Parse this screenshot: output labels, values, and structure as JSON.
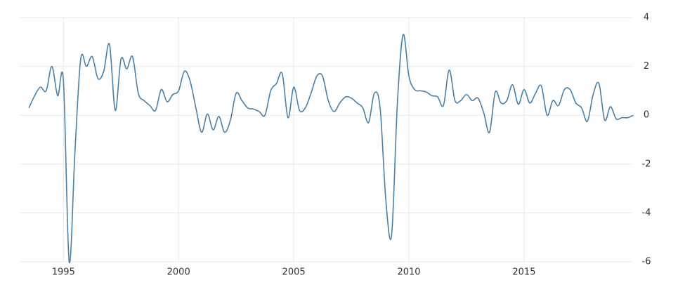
{
  "chart_data": {
    "type": "line",
    "x": [
      1993.5,
      1993.75,
      1994,
      1994.25,
      1994.5,
      1994.75,
      1995,
      1995.25,
      1995.5,
      1995.75,
      1996,
      1996.25,
      1996.5,
      1996.75,
      1997,
      1997.25,
      1997.5,
      1997.75,
      1998,
      1998.25,
      1998.5,
      1998.75,
      1999,
      1999.25,
      1999.5,
      1999.75,
      2000,
      2000.25,
      2000.5,
      2000.75,
      2001,
      2001.25,
      2001.5,
      2001.75,
      2002,
      2002.25,
      2002.5,
      2002.75,
      2003,
      2003.25,
      2003.5,
      2003.75,
      2004,
      2004.25,
      2004.5,
      2004.75,
      2005,
      2005.25,
      2005.5,
      2005.75,
      2006,
      2006.25,
      2006.5,
      2006.75,
      2007,
      2007.25,
      2007.5,
      2007.75,
      2008,
      2008.25,
      2008.5,
      2008.75,
      2009,
      2009.25,
      2009.5,
      2009.75,
      2010,
      2010.25,
      2010.5,
      2010.75,
      2011,
      2011.25,
      2011.5,
      2011.75,
      2012,
      2012.25,
      2012.5,
      2012.75,
      2013,
      2013.25,
      2013.5,
      2013.75,
      2014,
      2014.25,
      2014.5,
      2014.75,
      2015,
      2015.25,
      2015.5,
      2015.75,
      2016,
      2016.25,
      2016.5,
      2016.75,
      2017,
      2017.25,
      2017.5,
      2017.75,
      2018,
      2018.25,
      2018.5,
      2018.75,
      2019,
      2019.25,
      2019.5,
      2019.75
    ],
    "series": [
      {
        "color": "#4a80a8",
        "values": [
          0.3,
          0.8,
          1.15,
          1.0,
          2.0,
          0.8,
          1.4,
          -6.0,
          -1.5,
          2.3,
          2.0,
          2.4,
          1.5,
          1.8,
          2.9,
          0.2,
          2.3,
          1.9,
          2.4,
          0.9,
          0.6,
          0.4,
          0.2,
          1.05,
          0.55,
          0.85,
          1.0,
          1.8,
          1.4,
          0.3,
          -0.7,
          0.05,
          -0.6,
          -0.05,
          -0.7,
          -0.2,
          0.9,
          0.6,
          0.3,
          0.25,
          0.15,
          0.0,
          1.0,
          1.3,
          1.7,
          -0.1,
          1.15,
          0.2,
          0.3,
          0.9,
          1.6,
          1.6,
          0.6,
          0.15,
          0.5,
          0.75,
          0.7,
          0.5,
          0.3,
          -0.3,
          0.9,
          0.3,
          -3.5,
          -4.9,
          0.5,
          3.3,
          1.6,
          1.05,
          1.0,
          0.95,
          0.8,
          0.75,
          0.4,
          1.85,
          0.6,
          0.6,
          0.85,
          0.6,
          0.7,
          0.1,
          -0.7,
          0.95,
          0.5,
          0.6,
          1.25,
          0.45,
          1.05,
          0.5,
          0.9,
          1.2,
          0.0,
          0.6,
          0.4,
          1.05,
          1.05,
          0.5,
          0.3,
          -0.25,
          0.85,
          1.3,
          -0.2,
          0.35,
          -0.15,
          -0.1,
          -0.1,
          0.0
        ]
      }
    ],
    "xlim": [
      1993.1,
      2019.7
    ],
    "xticks": [
      1995,
      2000,
      2005,
      2010,
      2015
    ],
    "ylim": [
      -6,
      4
    ],
    "yticks": [
      4,
      2,
      0,
      -2,
      -4,
      -6
    ],
    "grid": true
  }
}
